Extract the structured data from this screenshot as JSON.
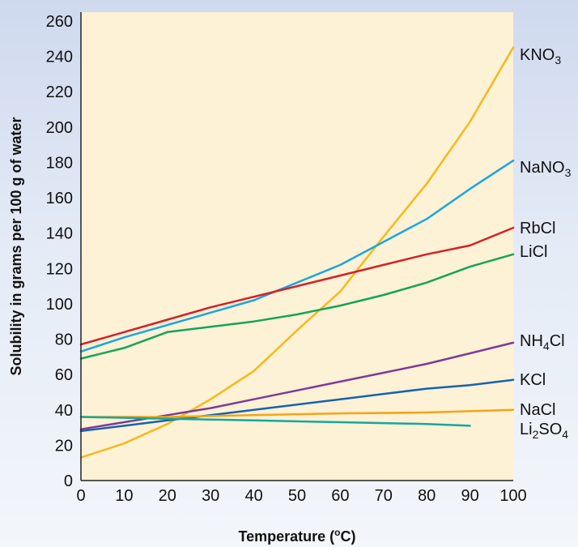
{
  "chart_data": {
    "type": "line",
    "title": "",
    "xlabel": "Temperature (°C)",
    "ylabel": "Solubility in grams per 100 g of water",
    "xlim": [
      0,
      100
    ],
    "ylim": [
      0,
      265
    ],
    "x_ticks": [
      0,
      10,
      20,
      30,
      40,
      50,
      60,
      70,
      80,
      90,
      100
    ],
    "y_ticks": [
      0,
      20,
      40,
      60,
      80,
      100,
      120,
      140,
      160,
      180,
      200,
      220,
      240,
      260
    ],
    "grid": false,
    "legend": "labels at right end of each line",
    "background_color": "#fdf1d6",
    "series": [
      {
        "name": "KNO3",
        "label_main": "KNO",
        "label_sub": "3",
        "label_tail": "",
        "color": "#f6b91a",
        "x": [
          0,
          10,
          20,
          30,
          40,
          50,
          60,
          70,
          80,
          90,
          100
        ],
        "y": [
          13,
          21,
          32,
          46,
          62,
          85,
          107,
          138,
          168,
          203,
          245
        ]
      },
      {
        "name": "NaNO3",
        "label_main": "NaNO",
        "label_sub": "3",
        "label_tail": "",
        "color": "#1ba6df",
        "x": [
          0,
          10,
          20,
          30,
          40,
          50,
          60,
          70,
          80,
          90,
          100
        ],
        "y": [
          73,
          81,
          88,
          95,
          102,
          112,
          122,
          135,
          148,
          165,
          181
        ]
      },
      {
        "name": "RbCl",
        "label_main": "RbCl",
        "label_sub": "",
        "label_tail": "",
        "color": "#d42027",
        "x": [
          0,
          10,
          20,
          30,
          40,
          50,
          60,
          70,
          80,
          90,
          100
        ],
        "y": [
          77,
          84,
          91,
          98,
          104,
          110,
          116,
          122,
          128,
          133,
          143
        ]
      },
      {
        "name": "LiCl",
        "label_main": "LiCl",
        "label_sub": "",
        "label_tail": "",
        "color": "#16a35a",
        "x": [
          0,
          10,
          20,
          30,
          40,
          50,
          60,
          70,
          80,
          90,
          100
        ],
        "y": [
          69,
          75,
          84,
          87,
          90,
          94,
          99,
          105,
          112,
          121,
          128
        ]
      },
      {
        "name": "NH4Cl",
        "label_main": "NH",
        "label_sub": "4",
        "label_tail": "Cl",
        "color": "#7d3b96",
        "x": [
          0,
          10,
          20,
          30,
          40,
          50,
          60,
          70,
          80,
          90,
          100
        ],
        "y": [
          29,
          33,
          37,
          41,
          46,
          51,
          56,
          61,
          66,
          72,
          78
        ]
      },
      {
        "name": "KCl",
        "label_main": "KCl",
        "label_sub": "",
        "label_tail": "",
        "color": "#1763ad",
        "x": [
          0,
          10,
          20,
          30,
          40,
          50,
          60,
          70,
          80,
          90,
          100
        ],
        "y": [
          28,
          31,
          34,
          37,
          40,
          43,
          46,
          49,
          52,
          54,
          57
        ]
      },
      {
        "name": "NaCl",
        "label_main": "NaCl",
        "label_sub": "",
        "label_tail": "",
        "color": "#f4a416",
        "x": [
          0,
          20,
          40,
          60,
          80,
          100
        ],
        "y": [
          36,
          36,
          37,
          38,
          38.5,
          40
        ]
      },
      {
        "name": "Li2SO4",
        "label_main": "Li",
        "label_sub": "2",
        "label_tail": "SO",
        "label_sub2": "4",
        "color": "#13a89e",
        "x": [
          0,
          20,
          40,
          60,
          80,
          90
        ],
        "y": [
          36,
          35,
          34,
          33,
          32,
          31
        ]
      }
    ]
  }
}
